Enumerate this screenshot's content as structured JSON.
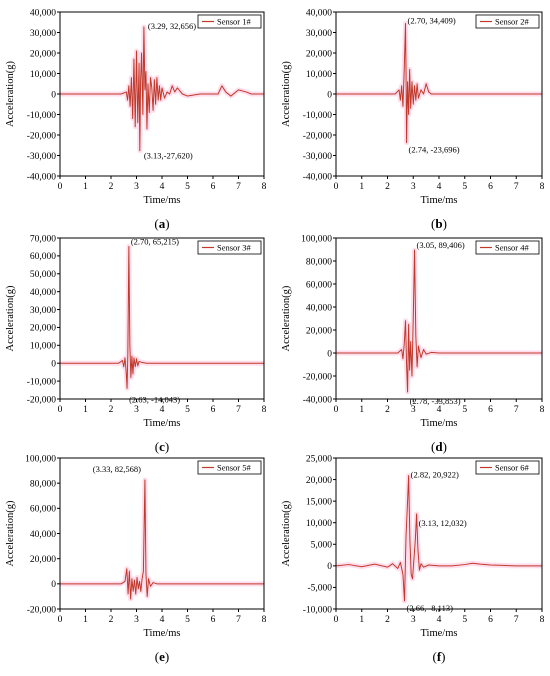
{
  "figure": {
    "colors": {
      "series": "#c0392b",
      "glow": "#ff9ec8",
      "axis": "#000000",
      "annotation_line": "#ff9ec8"
    }
  },
  "chart_data": [
    {
      "panel_label": "a",
      "type": "line",
      "xlabel": "Time/ms",
      "ylabel": "Acceleration(g)",
      "xlim": [
        0,
        8
      ],
      "ylim": [
        -40000,
        40000
      ],
      "xticks": [
        "0",
        "1",
        "2",
        "3",
        "4",
        "5",
        "6",
        "7",
        "8"
      ],
      "yticks": [
        "-40,000",
        "-30,000",
        "-20,000",
        "-10,000",
        "0",
        "10,000",
        "20,000",
        "30,000",
        "40,000"
      ],
      "ytick_values": [
        -40000,
        -30000,
        -20000,
        -10000,
        0,
        10000,
        20000,
        30000,
        40000
      ],
      "legend": "top-right",
      "series": [
        {
          "name": "Sensor 1#",
          "x": [
            0,
            2.4,
            2.6,
            2.65,
            2.7,
            2.75,
            2.8,
            2.85,
            2.9,
            2.95,
            3.0,
            3.05,
            3.1,
            3.13,
            3.16,
            3.2,
            3.25,
            3.29,
            3.33,
            3.37,
            3.41,
            3.45,
            3.5,
            3.55,
            3.6,
            3.65,
            3.7,
            3.75,
            3.8,
            3.85,
            3.9,
            3.95,
            4.0,
            4.1,
            4.2,
            4.3,
            4.4,
            4.5,
            4.6,
            4.8,
            5.0,
            5.5,
            6.0,
            6.2,
            6.35,
            6.5,
            6.7,
            7.0,
            7.3,
            7.5,
            8.0
          ],
          "y": [
            0,
            0,
            1000,
            -3000,
            4000,
            -6000,
            8000,
            -12000,
            17000,
            -16000,
            21000,
            -14000,
            15000,
            -27620,
            6000,
            20000,
            -10000,
            32656,
            2000,
            11000,
            -17000,
            5000,
            -9000,
            8000,
            3000,
            -8000,
            7000,
            -5000,
            8000,
            -3000,
            4000,
            -3000,
            3000,
            -2000,
            1000,
            0,
            4000,
            1000,
            3000,
            0,
            -1000,
            0,
            0,
            0,
            4000,
            1000,
            -1000,
            2000,
            1000,
            0,
            0
          ]
        }
      ],
      "annotations": [
        {
          "text": "(3.29, 32,656)",
          "x": 3.29,
          "y": 32656
        },
        {
          "text": "(3.13,-27,620)",
          "x": 3.13,
          "y": -27620
        }
      ]
    },
    {
      "panel_label": "b",
      "type": "line",
      "xlabel": "Time/ms",
      "ylabel": "Acceleration(g)",
      "xlim": [
        0,
        8
      ],
      "ylim": [
        -40000,
        40000
      ],
      "xticks": [
        "0",
        "1",
        "2",
        "3",
        "4",
        "5",
        "6",
        "7",
        "8"
      ],
      "yticks": [
        "-40,000",
        "-30,000",
        "-20,000",
        "-10,000",
        "0",
        "10,000",
        "20,000",
        "30,000",
        "40,000"
      ],
      "ytick_values": [
        -40000,
        -30000,
        -20000,
        -10000,
        0,
        10000,
        20000,
        30000,
        40000
      ],
      "legend": "top-right",
      "series": [
        {
          "name": "Sensor 2#",
          "x": [
            0,
            2.3,
            2.45,
            2.5,
            2.55,
            2.6,
            2.65,
            2.7,
            2.72,
            2.74,
            2.78,
            2.82,
            2.86,
            2.9,
            2.95,
            3.0,
            3.05,
            3.1,
            3.15,
            3.2,
            3.3,
            3.4,
            3.5,
            3.6,
            3.7,
            4.0,
            5.0,
            6.0,
            7.0,
            8.0
          ],
          "y": [
            0,
            0,
            2000,
            -3000,
            4000,
            -6000,
            12000,
            34409,
            10000,
            -23696,
            6000,
            -10000,
            12000,
            -7000,
            6000,
            -5000,
            4000,
            -3000,
            5000,
            -2000,
            2000,
            0,
            5000,
            1000,
            0,
            0,
            0,
            0,
            0,
            0
          ]
        }
      ],
      "annotations": [
        {
          "text": "(2.70, 34,409)",
          "x": 2.7,
          "y": 34409
        },
        {
          "text": "(2.74, -23,696)",
          "x": 2.74,
          "y": -23696
        }
      ]
    },
    {
      "panel_label": "c",
      "type": "line",
      "xlabel": "Time/ms",
      "ylabel": "Acceleration(g)",
      "xlim": [
        0,
        8
      ],
      "ylim": [
        -20000,
        70000
      ],
      "xticks": [
        "0",
        "1",
        "2",
        "3",
        "4",
        "5",
        "6",
        "7",
        "8"
      ],
      "yticks": [
        "-20,000",
        "-10,000",
        "0",
        "10,000",
        "20,000",
        "30,000",
        "40,000",
        "50,000",
        "60,000",
        "70,000"
      ],
      "ytick_values": [
        -20000,
        -10000,
        0,
        10000,
        20000,
        30000,
        40000,
        50000,
        60000,
        70000
      ],
      "legend": "top-right",
      "series": [
        {
          "name": "Sensor 3#",
          "x": [
            0,
            2.3,
            2.45,
            2.5,
            2.55,
            2.6,
            2.63,
            2.66,
            2.7,
            2.74,
            2.78,
            2.82,
            2.86,
            2.9,
            2.95,
            3.0,
            3.05,
            3.1,
            3.2,
            3.4,
            4.0,
            5.0,
            6.0,
            7.0,
            8.0
          ],
          "y": [
            0,
            0,
            1500,
            -2000,
            3000,
            -6000,
            -14043,
            5000,
            65215,
            10000,
            -8000,
            4000,
            -6000,
            3000,
            -2000,
            2500,
            -1500,
            1000,
            500,
            0,
            0,
            0,
            0,
            0,
            0
          ]
        }
      ],
      "annotations": [
        {
          "text": "(2.70, 65,215)",
          "x": 2.7,
          "y": 65215
        },
        {
          "text": "(2.63, -14,043)",
          "x": 2.63,
          "y": -14043
        }
      ]
    },
    {
      "panel_label": "d",
      "type": "line",
      "xlabel": "Time/ms",
      "ylabel": "Acceleration(g)",
      "xlim": [
        0,
        8
      ],
      "ylim": [
        -40000,
        100000
      ],
      "xticks": [
        "0",
        "1",
        "2",
        "3",
        "4",
        "5",
        "6",
        "7",
        "8"
      ],
      "yticks": [
        "-40,000",
        "-20,000",
        "0",
        "20,000",
        "40,000",
        "60,000",
        "80,000",
        "100,000"
      ],
      "ytick_values": [
        -40000,
        -20000,
        0,
        20000,
        40000,
        60000,
        80000,
        100000
      ],
      "legend": "top-right",
      "series": [
        {
          "name": "Sensor 4#",
          "x": [
            0,
            2.4,
            2.55,
            2.6,
            2.65,
            2.7,
            2.74,
            2.78,
            2.82,
            2.86,
            2.9,
            2.95,
            3.0,
            3.05,
            3.1,
            3.15,
            3.2,
            3.3,
            3.4,
            3.5,
            3.7,
            4.0,
            5.0,
            6.0,
            7.0,
            8.0
          ],
          "y": [
            0,
            0,
            3000,
            -5000,
            8000,
            28000,
            -10000,
            -33853,
            25000,
            -15000,
            10000,
            -20000,
            30000,
            89406,
            15000,
            -12000,
            6000,
            -4000,
            3000,
            -1000,
            500,
            0,
            0,
            0,
            0,
            0
          ]
        }
      ],
      "annotations": [
        {
          "text": "(3.05, 89,406)",
          "x": 3.05,
          "y": 89406
        },
        {
          "text": "(2.78, -33,853)",
          "x": 2.78,
          "y": -33853
        }
      ]
    },
    {
      "panel_label": "e",
      "type": "line",
      "xlabel": "Time/ms",
      "ylabel": "Acceleration(g)",
      "xlim": [
        0,
        8
      ],
      "ylim": [
        -20000,
        100000
      ],
      "xticks": [
        "0",
        "1",
        "2",
        "3",
        "4",
        "5",
        "6",
        "7",
        "8"
      ],
      "yticks": [
        "-20,000",
        "0",
        "20,000",
        "40,000",
        "60,000",
        "80,000",
        "100,000"
      ],
      "ytick_values": [
        -20000,
        0,
        20000,
        40000,
        60000,
        80000,
        100000
      ],
      "legend": "top-right",
      "series": [
        {
          "name": "Sensor 5#",
          "x": [
            0,
            2.4,
            2.55,
            2.62,
            2.67,
            2.72,
            2.77,
            2.82,
            2.87,
            2.92,
            2.97,
            3.02,
            3.07,
            3.12,
            3.17,
            3.22,
            3.27,
            3.33,
            3.37,
            3.42,
            3.47,
            3.55,
            3.65,
            3.8,
            4.0,
            5.0,
            6.0,
            7.0,
            8.0
          ],
          "y": [
            0,
            0,
            2000,
            12000,
            -8000,
            10000,
            -12000,
            4000,
            -6000,
            3000,
            -8000,
            5000,
            -4000,
            2000,
            -6000,
            4000,
            10000,
            82568,
            8000,
            -10000,
            4000,
            -2000,
            1000,
            0,
            0,
            0,
            0,
            0,
            0
          ]
        }
      ],
      "annotations": [
        {
          "text": "(3.33, 82,568)",
          "x": 3.33,
          "y": 82568
        }
      ]
    },
    {
      "panel_label": "f",
      "type": "line",
      "xlabel": "Time/ms",
      "ylabel": "Acceleration(g)",
      "xlim": [
        0,
        8
      ],
      "ylim": [
        -10000,
        25000
      ],
      "xticks": [
        "0",
        "1",
        "2",
        "3",
        "4",
        "5",
        "6",
        "7",
        "8"
      ],
      "yticks": [
        "-10,000",
        "-5,000",
        "0",
        "5,000",
        "10,000",
        "15,000",
        "20,000",
        "25,000"
      ],
      "ytick_values": [
        -10000,
        -5000,
        0,
        5000,
        10000,
        15000,
        20000,
        25000
      ],
      "legend": "top-right",
      "series": [
        {
          "name": "Sensor 6#",
          "x": [
            0,
            0.5,
            1.0,
            1.5,
            2.0,
            2.2,
            2.4,
            2.5,
            2.6,
            2.66,
            2.72,
            2.78,
            2.82,
            2.87,
            2.92,
            2.97,
            3.02,
            3.08,
            3.13,
            3.18,
            3.24,
            3.3,
            3.4,
            3.6,
            4.0,
            4.5,
            5.0,
            5.3,
            5.6,
            6.0,
            6.5,
            7.0,
            7.5,
            8.0
          ],
          "y": [
            0,
            300,
            -200,
            400,
            -300,
            500,
            -600,
            800,
            -2000,
            -8113,
            7000,
            15000,
            20922,
            6000,
            -2000,
            -3000,
            1000,
            6000,
            12032,
            4000,
            -1000,
            500,
            -300,
            200,
            0,
            0,
            300,
            600,
            400,
            200,
            100,
            0,
            0,
            0
          ]
        }
      ],
      "annotations": [
        {
          "text": "(2.82, 20,922)",
          "x": 2.82,
          "y": 20922
        },
        {
          "text": "(3.13, 12,032)",
          "x": 3.13,
          "y": 12032
        },
        {
          "text": "(2.66, -8,113)",
          "x": 2.66,
          "y": -8113
        }
      ]
    }
  ]
}
